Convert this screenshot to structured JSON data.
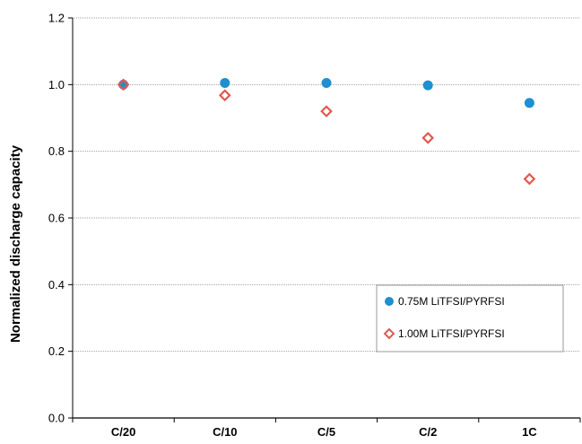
{
  "chart_data": {
    "type": "scatter",
    "title": "",
    "xlabel": "",
    "ylabel": "Normalized discharge capacity",
    "categories": [
      "C/20",
      "C/10",
      "C/5",
      "C/2",
      "1C"
    ],
    "ylim": [
      0.0,
      1.2
    ],
    "yticks": [
      "0.0",
      "0.2",
      "0.4",
      "0.6",
      "0.8",
      "1.0",
      "1.2"
    ],
    "grid": true,
    "legend_position": "bottom-right",
    "series": [
      {
        "name": "0.75M LiTFSI/PYRFSI",
        "marker": "filled-circle",
        "color": "#1e8fd0",
        "values": [
          1.0,
          1.005,
          1.005,
          0.998,
          0.945
        ]
      },
      {
        "name": "1.00M LiTFSI/PYRFSI",
        "marker": "open-diamond",
        "color": "#e05a50",
        "values": [
          1.0,
          0.968,
          0.92,
          0.84,
          0.717
        ]
      }
    ]
  }
}
